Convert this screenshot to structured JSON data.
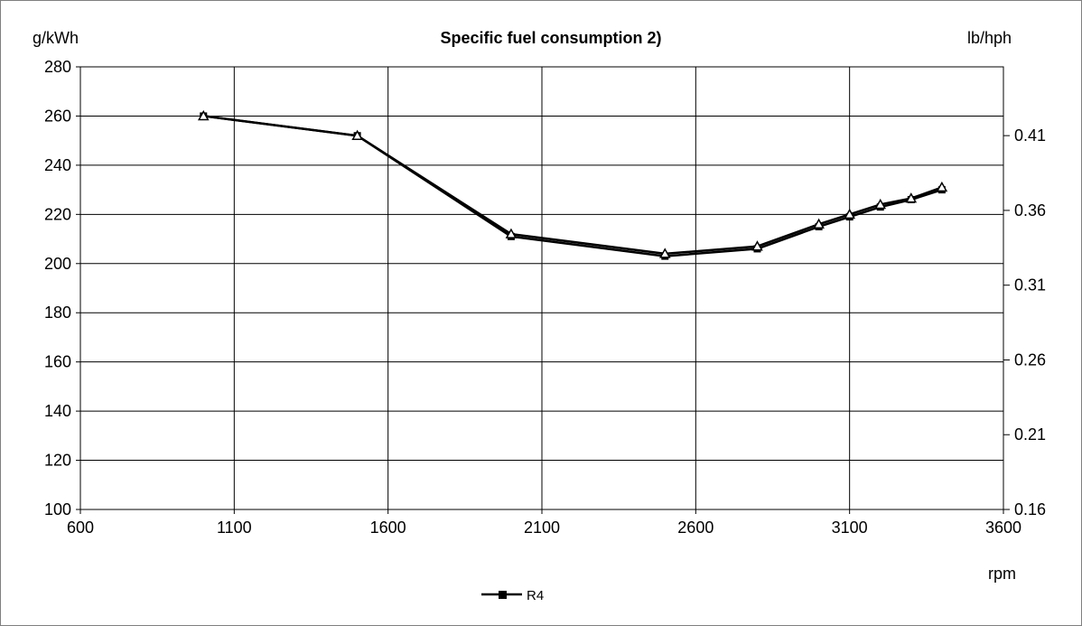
{
  "chart_data": {
    "type": "line",
    "title": "Specific fuel consumption 2)",
    "ylabel": "g/kWh",
    "y2label": "lb/hph",
    "xlabel": "rpm",
    "xlim": [
      600,
      3600
    ],
    "ylim": [
      100,
      280
    ],
    "y2lim": [
      0.16,
      0.456
    ],
    "x_ticks": [
      600,
      1100,
      1600,
      2100,
      2600,
      3100,
      3600
    ],
    "y_ticks": [
      100,
      120,
      140,
      160,
      180,
      200,
      220,
      240,
      260,
      280
    ],
    "y2_ticks": [
      "0.16",
      "0.21",
      "0.26",
      "0.31",
      "0.36",
      "0.41"
    ],
    "grid": true,
    "legend_position": "bottom-center",
    "series": [
      {
        "name": "R4",
        "marker": "square",
        "color": "#000000",
        "x": [
          1000,
          1500,
          2000,
          2500,
          2800,
          3000,
          3100,
          3200,
          3300,
          3400
        ],
        "y": [
          260,
          252,
          211,
          203,
          206,
          215,
          219,
          223,
          226,
          230
        ]
      },
      {
        "name": "",
        "marker": "triangle",
        "color": "#000000",
        "x": [
          1000,
          1500,
          2000,
          2500,
          2800,
          3000,
          3100,
          3200,
          3300,
          3400
        ],
        "y": [
          260,
          252,
          212,
          204,
          207,
          216,
          220,
          224,
          226.5,
          231
        ]
      }
    ]
  }
}
